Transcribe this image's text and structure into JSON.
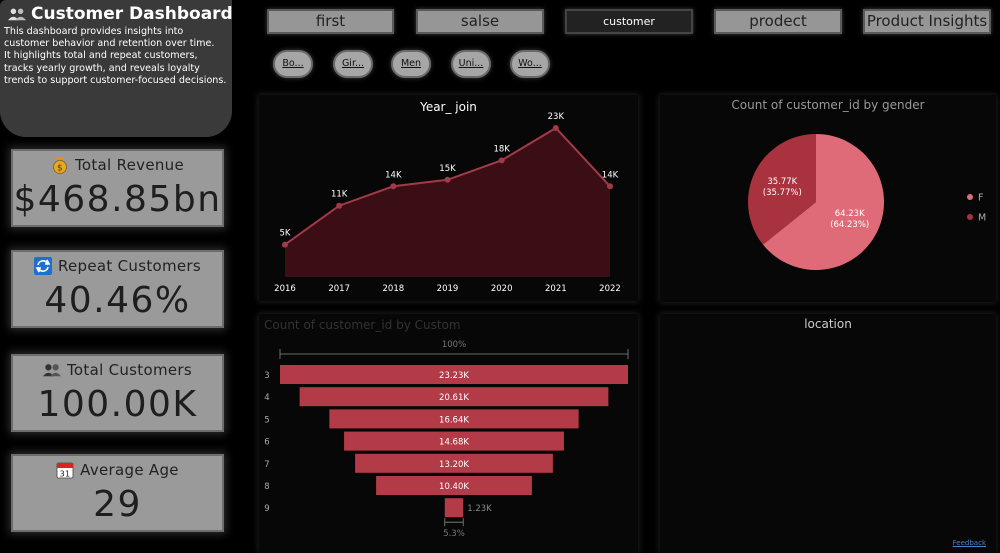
{
  "header": {
    "title": "Customer Dashboard",
    "description": "This dashboard provides insights into customer behavior and retention over time.\n It highlights total and repeat customers, tracks yearly growth, and reveals loyalty trends to support customer-focused decisions."
  },
  "kpis": [
    {
      "label": "Total Revenue",
      "value": "$468.85bn",
      "icon": "money-bag-icon"
    },
    {
      "label": "Repeat Customers",
      "value": "40.46%",
      "icon": "repeat-icon"
    },
    {
      "label": "Total Customers",
      "value": "100.00K",
      "icon": "users-icon"
    },
    {
      "label": "Average Age",
      "value": "29",
      "icon": "calendar-icon"
    }
  ],
  "tabs": [
    {
      "label": "first"
    },
    {
      "label": "salse"
    },
    {
      "label": "customer",
      "active": true
    },
    {
      "label": "prodect"
    },
    {
      "label": "Product Insights"
    }
  ],
  "slicers": [
    "Bo...",
    "Gir...",
    "Men",
    "Uni...",
    "Wo..."
  ],
  "year_chart_title": "Year_ join",
  "gender_chart_title": "Count of customer_id by gender",
  "funnel_chart_title": "Count of customer_id by Custom",
  "map_title": "location",
  "feedback_label": "Feedback",
  "colors": {
    "line": "#a33a48",
    "area": "#3a0e14",
    "pie_f": "#e06b78",
    "pie_m": "#a8333f",
    "funnel": "#b23b47"
  },
  "chart_data": [
    {
      "type": "area",
      "title": "Year_ join",
      "x": [
        "2016",
        "2017",
        "2018",
        "2019",
        "2020",
        "2021",
        "2022"
      ],
      "values": [
        5,
        11,
        14,
        15,
        18,
        23,
        14
      ],
      "labels": [
        "5K",
        "11K",
        "14K",
        "15K",
        "18K",
        "23K",
        "14K"
      ],
      "ylim": [
        0,
        25
      ]
    },
    {
      "type": "pie",
      "title": "Count of customer_id by gender",
      "categories": [
        "F",
        "M"
      ],
      "values": [
        64.23,
        35.77
      ],
      "labels": [
        "64.23K",
        "35.77K"
      ],
      "percent_labels": [
        "(64.23%)",
        "(35.77%)"
      ],
      "legend": "right"
    },
    {
      "type": "bar",
      "subtype": "funnel",
      "title": "Count of customer_id by Custom",
      "categories": [
        "3",
        "4",
        "5",
        "6",
        "7",
        "8",
        "9"
      ],
      "values": [
        23.23,
        20.61,
        16.64,
        14.68,
        13.2,
        10.4,
        1.23
      ],
      "labels": [
        "23.23K",
        "20.61K",
        "16.64K",
        "14.68K",
        "13.20K",
        "10.40K",
        "1.23K"
      ],
      "top_percent": "100%",
      "bottom_percent": "5.3%"
    }
  ]
}
